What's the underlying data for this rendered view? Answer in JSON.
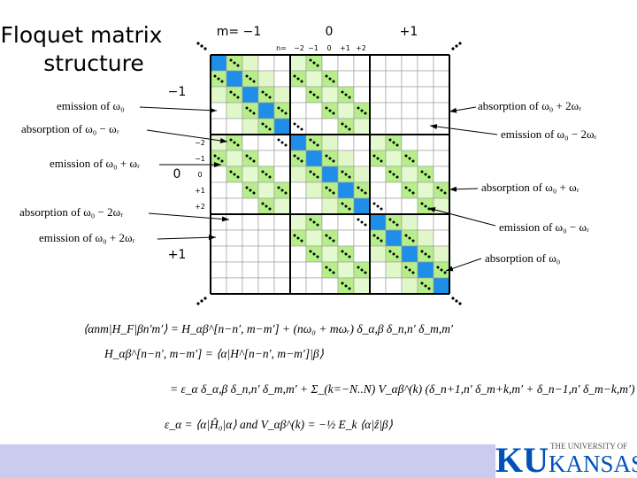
{
  "title": [
    "Floquet matrix",
    "structure"
  ],
  "matrix": {
    "m_labels": [
      "m= −1",
      "0",
      "+1"
    ],
    "n_labels": [
      "n=",
      "−2",
      "−1",
      "0",
      "+1",
      "+2"
    ],
    "row_m_labels": [
      "−1",
      "0",
      "+1"
    ],
    "row_n_labels": [
      "−2",
      "−1",
      "0",
      "+1",
      "+2"
    ]
  },
  "annotations_left": [
    "emission of ω₀",
    "absorption of ω₀ − ωᵣ",
    "emission of ω₀ + ωᵣ",
    "absorption of ω₀ − 2ωᵣ",
    "emission of ω₀ + 2ωᵣ"
  ],
  "annotations_right": [
    "absorption of ω₀ + 2ωᵣ",
    "emission of ω₀ − 2ωᵣ",
    "absorption of ω₀ + ωᵣ",
    "emission of ω₀ − ωᵣ",
    "absorption of ω₀"
  ],
  "equations": [
    "⟨αnm|H_F|βn′m′⟩ = H_αβ^[n−n′, m−m′] + (nω₀ + mωᵣ) δ_α,β δ_n,n′ δ_m,m′",
    "H_αβ^[n−n′, m−m′] = ⟨α|H^[n−n′, m−m′]|β⟩",
    "= ε_α δ_α,β δ_n,n′ δ_m,m′ + Σ_(k=−N..N) V_αβ^(k) (δ_n+1,n′ δ_m+k,m′ + δ_n−1,n′ δ_m−k,m′) ,",
    "ε_α = ⟨α|Ĥ₀|α⟩   and   V_αβ^(k) = −½ E_k ⟨α|ẑ|β⟩"
  ],
  "logo": {
    "mark": "KU",
    "line1": "THE UNIVERSITY OF",
    "line2": "KANSAS"
  }
}
